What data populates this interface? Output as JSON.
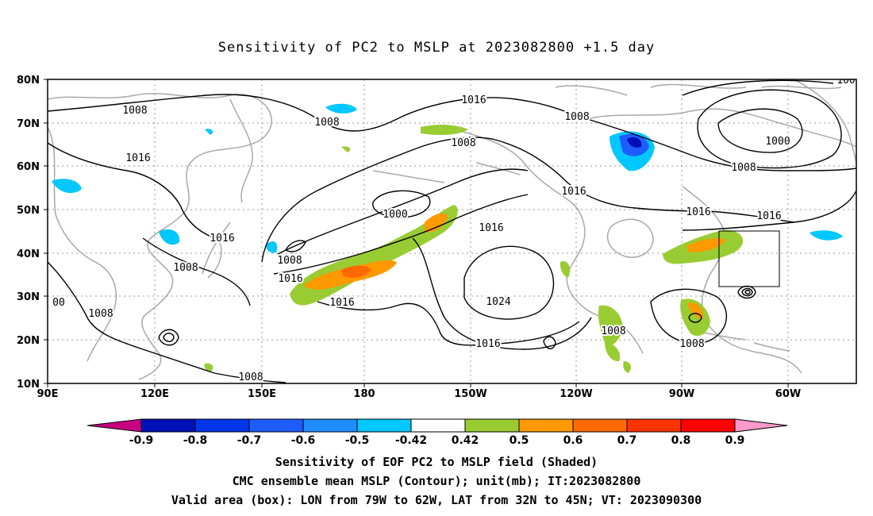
{
  "title": "Sensitivity of PC2 to MSLP at 2023082800 +1.5 day",
  "lat_labels": [
    "80N",
    "70N",
    "60N",
    "50N",
    "40N",
    "30N",
    "20N",
    "10N"
  ],
  "lon_labels": [
    "90E",
    "120E",
    "150E",
    "180",
    "150W",
    "120W",
    "90W",
    "60W"
  ],
  "contour_labels": [
    {
      "text": "1008"
    },
    {
      "text": "1008"
    },
    {
      "text": "1016"
    },
    {
      "text": "1016"
    },
    {
      "text": "1008"
    },
    {
      "text": "1008"
    },
    {
      "text": "1000"
    },
    {
      "text": "1016"
    },
    {
      "text": "1000"
    },
    {
      "text": "1016"
    },
    {
      "text": "1016"
    },
    {
      "text": "1016"
    },
    {
      "text": "1008"
    },
    {
      "text": "1008"
    },
    {
      "text": "1016"
    },
    {
      "text": "1016"
    },
    {
      "text": "1008"
    },
    {
      "text": "00"
    },
    {
      "text": "1008"
    },
    {
      "text": "1024"
    },
    {
      "text": "1016"
    },
    {
      "text": "1008"
    },
    {
      "text": "1008"
    },
    {
      "text": "1016"
    },
    {
      "text": "100"
    },
    {
      "text": "1008"
    }
  ],
  "colorbar": {
    "labels": [
      "-0.9",
      "-0.8",
      "-0.7",
      "-0.6",
      "-0.5",
      "-0.42",
      "0.42",
      "0.5",
      "0.6",
      "0.7",
      "0.8",
      "0.9"
    ],
    "colors": {
      "below": "#c8007f",
      "bins": [
        "#0010b8",
        "#0036e8",
        "#1f5cff",
        "#1e8cff",
        "#00c8ff",
        "#ffffff",
        "#99cc33",
        "#ff9900",
        "#ff6a00",
        "#ff3300",
        "#ff0000"
      ],
      "above": "#ff99cc"
    }
  },
  "footer": {
    "line1": "Sensitivity of EOF PC2 to MSLP field (Shaded)",
    "line2": "CMC ensemble mean MSLP (Contour); unit(mb); IT:2023082800",
    "line3": "Valid area (box): LON from 79W to 62W, LAT from 32N to 45N; VT: 2023090300"
  }
}
